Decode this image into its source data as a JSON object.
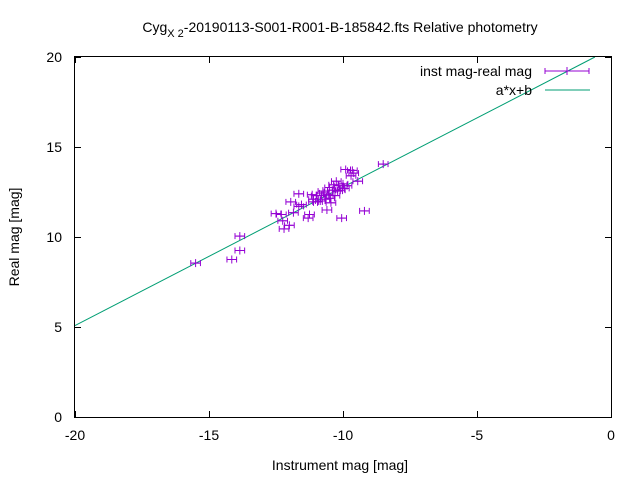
{
  "chart_data": {
    "type": "scatter",
    "title_main": "Cyg",
    "title_sub": "X 2",
    "title_rest": "-20190113-S001-R001-B-185842.fts Relative photometry",
    "xlabel": "Instrument mag [mag]",
    "ylabel": "Real mag [mag]",
    "xlim": [
      -20,
      0
    ],
    "ylim": [
      0,
      20
    ],
    "xticks": [
      -20,
      -15,
      -10,
      -5,
      0
    ],
    "yticks": [
      0,
      5,
      10,
      15,
      20
    ],
    "grid": false,
    "legend_position": "top-right",
    "series": [
      {
        "name": "inst mag-real mag",
        "kind": "points-with-x-errorbars",
        "color": "#9400d3",
        "x_err": 0.18,
        "points": [
          [
            -15.5,
            8.55
          ],
          [
            -14.15,
            8.75
          ],
          [
            -13.85,
            9.25
          ],
          [
            -13.85,
            10.05
          ],
          [
            -12.5,
            11.3
          ],
          [
            -12.3,
            11.25
          ],
          [
            -12.25,
            10.9
          ],
          [
            -12.2,
            10.45
          ],
          [
            -12.0,
            10.65
          ],
          [
            -11.95,
            11.95
          ],
          [
            -11.85,
            11.35
          ],
          [
            -11.65,
            11.7
          ],
          [
            -11.65,
            12.4
          ],
          [
            -11.55,
            11.8
          ],
          [
            -11.3,
            11.05
          ],
          [
            -11.25,
            11.25
          ],
          [
            -11.15,
            12.35
          ],
          [
            -11.1,
            12.1
          ],
          [
            -11.1,
            11.95
          ],
          [
            -11.0,
            12.3
          ],
          [
            -10.95,
            11.95
          ],
          [
            -10.85,
            12.0
          ],
          [
            -10.8,
            12.3
          ],
          [
            -10.75,
            12.55
          ],
          [
            -10.7,
            12.45
          ],
          [
            -10.65,
            12.1
          ],
          [
            -10.6,
            11.5
          ],
          [
            -10.55,
            12.35
          ],
          [
            -10.5,
            12.75
          ],
          [
            -10.5,
            12.15
          ],
          [
            -10.45,
            11.9
          ],
          [
            -10.4,
            12.6
          ],
          [
            -10.35,
            12.9
          ],
          [
            -10.3,
            12.3
          ],
          [
            -10.25,
            13.1
          ],
          [
            -10.2,
            12.55
          ],
          [
            -10.15,
            12.85
          ],
          [
            -10.1,
            12.6
          ],
          [
            -10.05,
            11.05
          ],
          [
            -10.0,
            12.95
          ],
          [
            -9.95,
            12.7
          ],
          [
            -9.9,
            13.75
          ],
          [
            -9.85,
            12.85
          ],
          [
            -9.7,
            13.4
          ],
          [
            -9.65,
            13.7
          ],
          [
            -9.6,
            13.55
          ],
          [
            -9.45,
            13.1
          ],
          [
            -9.2,
            11.45
          ],
          [
            -8.5,
            14.05
          ]
        ]
      },
      {
        "name": "a*x+b",
        "kind": "line",
        "color": "#009e73",
        "line_endpoints": [
          [
            -20,
            5.08
          ],
          [
            -0.6,
            20
          ]
        ]
      }
    ]
  }
}
